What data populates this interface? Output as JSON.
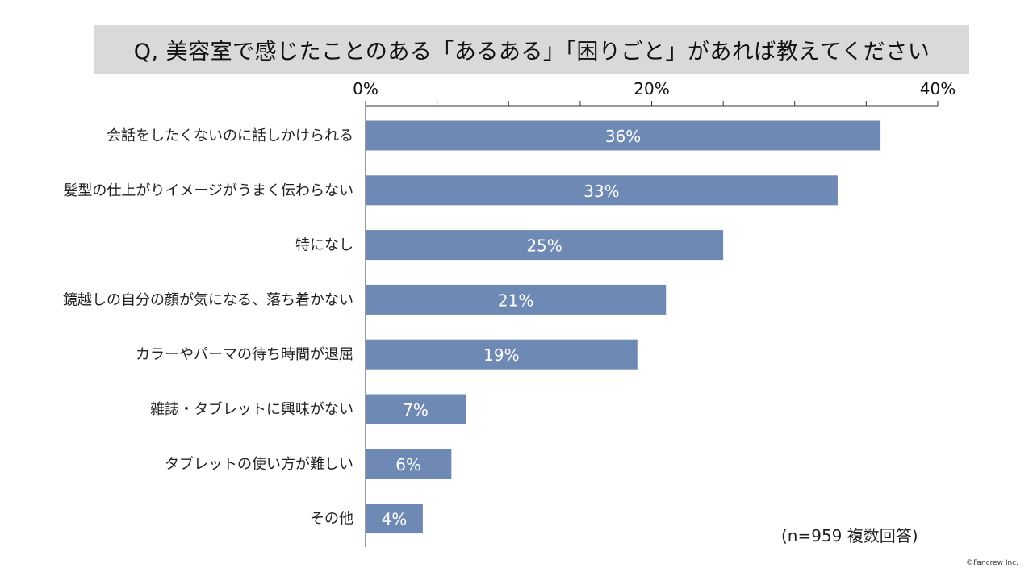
{
  "title": "Q, 美容室で感じたことのある「あるある」「困りごと」があれば教えてください",
  "note": "(n=959 複数回答)",
  "copyright": "©Fancrew Inc.",
  "colors": {
    "bar": "#6f89b5",
    "title_bg": "#d9d9d9",
    "axis": "#333333"
  },
  "chart_data": {
    "type": "bar",
    "orientation": "horizontal",
    "categories": [
      "会話をしたくないのに話しかけられる",
      "髪型の仕上がりイメージがうまく伝わらない",
      "特になし",
      "鏡越しの自分の顔が気になる、落ち着かない",
      "カラーやパーマの待ち時間が退屈",
      "雑誌・タブレットに興味がない",
      "タブレットの使い方が難しい",
      "その他"
    ],
    "values": [
      36,
      33,
      25,
      21,
      19,
      7,
      6,
      4
    ],
    "value_labels": [
      "36%",
      "33%",
      "25%",
      "21%",
      "19%",
      "7%",
      "6%",
      "4%"
    ],
    "xlim": [
      0,
      40
    ],
    "xticks": [
      0,
      20,
      40
    ],
    "xtick_labels": [
      "0%",
      "20%",
      "40%"
    ],
    "minor_ticks": [
      5,
      10,
      15,
      25,
      30,
      35
    ],
    "axis_position": "top",
    "grid": false,
    "legend": "none"
  }
}
